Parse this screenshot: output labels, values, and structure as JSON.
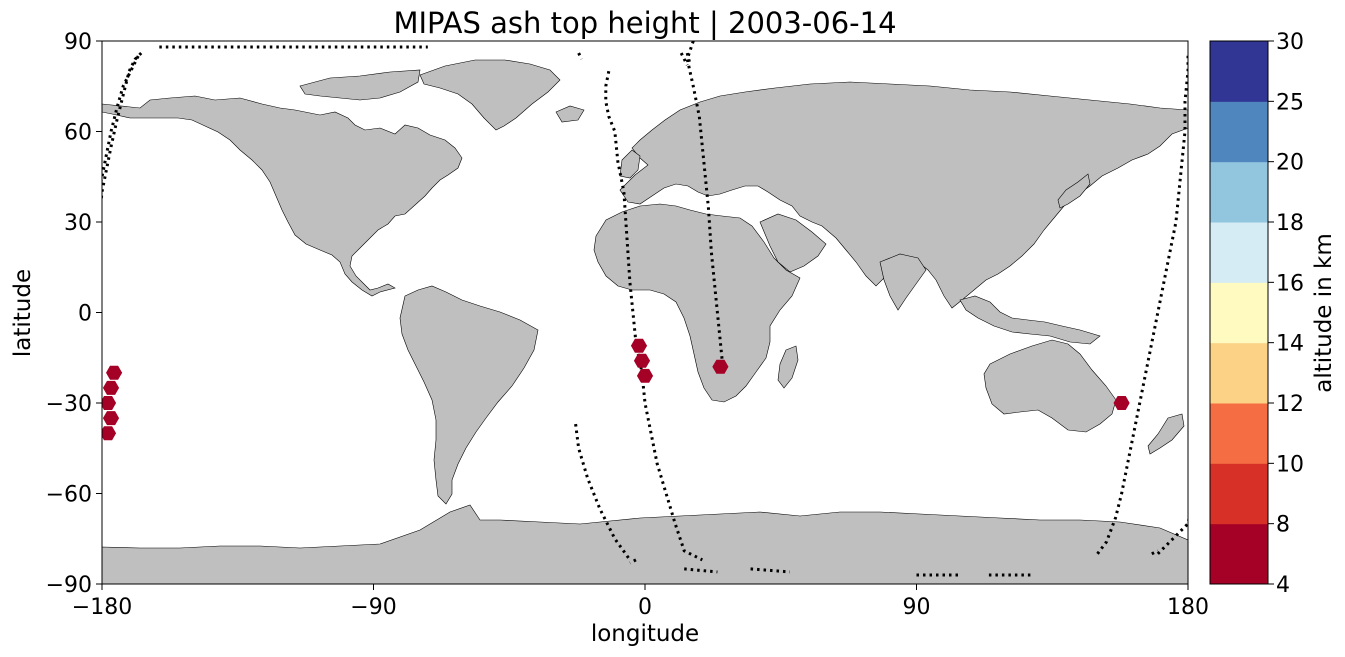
{
  "title": "MIPAS ash top height | 2003-06-14",
  "axes": {
    "xlabel": "longitude",
    "ylabel": "latitude",
    "xticks": [
      -180,
      -90,
      0,
      90,
      180
    ],
    "yticks": [
      -90,
      -60,
      -30,
      0,
      30,
      60,
      90
    ],
    "xlim": [
      -180,
      180
    ],
    "ylim": [
      -90,
      90
    ]
  },
  "colorbar": {
    "label": "altitude in km",
    "ticks": [
      4,
      8,
      10,
      12,
      14,
      16,
      18,
      20,
      25,
      30
    ],
    "colors": [
      "#a50026",
      "#d73027",
      "#f46d43",
      "#fdae61",
      "#fee090",
      "#ffffbf",
      "#e0f3f8",
      "#abd9e9",
      "#74add1",
      "#4575b4",
      "#313695"
    ],
    "used_colors": [
      "#a50026",
      "#d73027",
      "#f46d43",
      "#fcd286",
      "#fffbc0",
      "#d5ecf4",
      "#92c5de",
      "#4f86bd",
      "#313695"
    ]
  },
  "colors": {
    "land": "#bfbfbf",
    "coast": "#000000",
    "track": "#000000"
  },
  "chart_data": {
    "type": "scatter",
    "title": "MIPAS ash top height | 2003-06-14",
    "xlabel": "longitude",
    "ylabel": "latitude",
    "xlim": [
      -180,
      180
    ],
    "ylim": [
      -90,
      90
    ],
    "series": [
      {
        "kind": "satellite-track",
        "marker": "dot",
        "tracks": [
          [
            [
              -168,
              85
            ],
            [
              -170,
              81
            ],
            [
              -173,
              75
            ],
            [
              -175,
              68
            ],
            [
              -177,
              60
            ],
            [
              -179,
              50
            ],
            [
              -181,
              40
            ]
          ],
          [
            [
              -167,
              86
            ],
            [
              -169,
              84
            ],
            [
              -171,
              80
            ],
            [
              -173,
              72
            ],
            [
              -175,
              64
            ],
            [
              -177,
              55
            ],
            [
              -179,
              45
            ],
            [
              -180,
              40
            ],
            [
              -181,
              30
            ],
            [
              -182,
              20
            ],
            [
              -183,
              10
            ],
            [
              -184,
              0
            ],
            [
              -186,
              -10
            ],
            [
              -187,
              -20
            ],
            [
              -188,
              -30
            ],
            [
              -189,
              -40
            ],
            [
              -190,
              -50
            ],
            [
              -191,
              -56
            ]
          ],
          [
            [
              -23,
              -37
            ],
            [
              -22,
              -45
            ],
            [
              -19,
              -55
            ],
            [
              -15,
              -65
            ],
            [
              -10,
              -75
            ],
            [
              -5,
              -82
            ]
          ],
          [
            [
              -3,
              -82
            ],
            [
              -5,
              -83
            ]
          ],
          [
            [
              -12,
              80
            ],
            [
              -13,
              75
            ],
            [
              -13,
              70
            ],
            [
              -12,
              65
            ],
            [
              -10,
              60
            ],
            [
              -9,
              50
            ],
            [
              -7,
              40
            ],
            [
              -6,
              25
            ],
            [
              -5,
              10
            ],
            [
              -4,
              0
            ],
            [
              -3,
              -10
            ],
            [
              -1,
              -20
            ],
            [
              0,
              -30
            ],
            [
              2,
              -40
            ],
            [
              4,
              -50
            ],
            [
              7,
              -60
            ],
            [
              10,
              -70
            ],
            [
              13,
              -79
            ],
            [
              19,
              -82
            ]
          ],
          [
            [
              14,
              86
            ],
            [
              15,
              82
            ]
          ],
          [
            [
              12,
              86
            ],
            [
              14,
              82
            ]
          ],
          [
            [
              13,
              -85
            ],
            [
              24,
              -86
            ]
          ],
          [
            [
              35,
              -85
            ],
            [
              48,
              -86
            ]
          ],
          [
            [
              16,
              90
            ],
            [
              14,
              84
            ],
            [
              16,
              75
            ],
            [
              18,
              65
            ],
            [
              19,
              55
            ],
            [
              20,
              45
            ],
            [
              21,
              35
            ],
            [
              22,
              20
            ],
            [
              23,
              10
            ],
            [
              24,
              0
            ],
            [
              25,
              -10
            ],
            [
              26,
              -20
            ]
          ],
          [
            [
              150,
              -80
            ],
            [
              153,
              -76
            ],
            [
              156,
              -68
            ],
            [
              158,
              -60
            ],
            [
              160,
              -50
            ],
            [
              162,
              -40
            ],
            [
              164,
              -30
            ],
            [
              166,
              -20
            ],
            [
              168,
              -10
            ],
            [
              170,
              0
            ],
            [
              172,
              10
            ],
            [
              174,
              20
            ],
            [
              176,
              30
            ],
            [
              177,
              40
            ],
            [
              178,
              50
            ],
            [
              179,
              60
            ],
            [
              179,
              70
            ],
            [
              180,
              80
            ],
            [
              180,
              86
            ]
          ],
          [
            [
              170,
              -80
            ],
            [
              175,
              -75
            ],
            [
              180,
              -70
            ],
            [
              182,
              -60
            ]
          ],
          [
            [
              168,
              -80
            ],
            [
              170,
              -79
            ]
          ],
          [
            [
              90,
              -87
            ],
            [
              104,
              -87
            ]
          ],
          [
            [
              114,
              -87
            ],
            [
              128,
              -87
            ]
          ],
          [
            [
              -161,
              88
            ],
            [
              -72,
              88
            ]
          ],
          [
            [
              -22,
              86
            ],
            [
              -21,
              84
            ]
          ]
        ]
      },
      {
        "kind": "ash-detections",
        "marker": "hexagon",
        "points": [
          {
            "lon": -176,
            "lat": -20,
            "alt_class": "4-8"
          },
          {
            "lon": -177,
            "lat": -25,
            "alt_class": "4-8"
          },
          {
            "lon": -178,
            "lat": -30,
            "alt_class": "4-8"
          },
          {
            "lon": -177,
            "lat": -35,
            "alt_class": "4-8"
          },
          {
            "lon": -178,
            "lat": -40,
            "alt_class": "4-8"
          },
          {
            "lon": -2,
            "lat": -11,
            "alt_class": "4-8"
          },
          {
            "lon": -1,
            "lat": -16,
            "alt_class": "4-8"
          },
          {
            "lon": 0,
            "lat": -21,
            "alt_class": "4-8"
          },
          {
            "lon": 25,
            "lat": -18,
            "alt_class": "4-8"
          },
          {
            "lon": 158,
            "lat": -30,
            "alt_class": "4-8"
          }
        ]
      }
    ]
  }
}
